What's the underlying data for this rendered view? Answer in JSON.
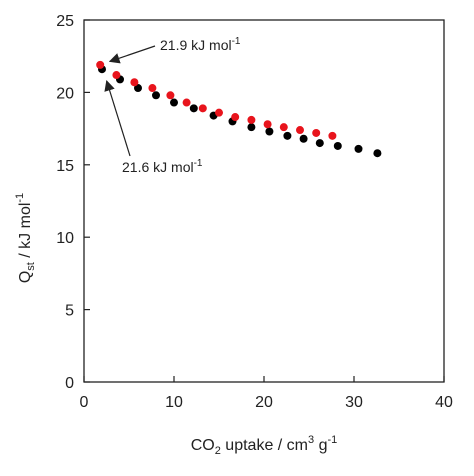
{
  "chart_data": {
    "type": "scatter",
    "xlabel": {
      "pre": "CO",
      "sub": "2",
      "post": " uptake / cm",
      "sup": "3",
      "tail": " g",
      "sup2": "-1"
    },
    "ylabel": {
      "pre": "Q",
      "sub": "st",
      "post": " / kJ mol",
      "sup": "-1"
    },
    "xlim": [
      0,
      40
    ],
    "ylim": [
      0,
      25
    ],
    "xticks": [
      0,
      10,
      20,
      30,
      40
    ],
    "yticks": [
      0,
      5,
      10,
      15,
      20,
      25
    ],
    "grid": false,
    "series": [
      {
        "color": "#000000",
        "points": [
          [
            2.0,
            21.6
          ],
          [
            4.0,
            20.9
          ],
          [
            6.0,
            20.3
          ],
          [
            8.0,
            19.8
          ],
          [
            10.0,
            19.3
          ],
          [
            12.2,
            18.9
          ],
          [
            14.4,
            18.4
          ],
          [
            16.5,
            18.0
          ],
          [
            18.6,
            17.6
          ],
          [
            20.6,
            17.3
          ],
          [
            22.6,
            17.0
          ],
          [
            24.4,
            16.8
          ],
          [
            26.2,
            16.5
          ],
          [
            28.2,
            16.3
          ],
          [
            30.5,
            16.1
          ],
          [
            32.6,
            15.8
          ]
        ]
      },
      {
        "color": "#e8141c",
        "points": [
          [
            1.8,
            21.9
          ],
          [
            3.6,
            21.2
          ],
          [
            5.6,
            20.7
          ],
          [
            7.6,
            20.3
          ],
          [
            9.6,
            19.8
          ],
          [
            11.4,
            19.3
          ],
          [
            13.2,
            18.9
          ],
          [
            15.0,
            18.6
          ],
          [
            16.8,
            18.3
          ],
          [
            18.6,
            18.1
          ],
          [
            20.4,
            17.8
          ],
          [
            22.2,
            17.6
          ],
          [
            24.0,
            17.4
          ],
          [
            25.8,
            17.2
          ],
          [
            27.6,
            17.0
          ]
        ]
      }
    ],
    "annotations": [
      {
        "text": "21.9 kJ mol",
        "sup": "-1",
        "target": [
          2.2,
          22.0
        ]
      },
      {
        "text": "21.6 kJ mol",
        "sup": "-1",
        "target": [
          2.3,
          21.2
        ]
      }
    ]
  }
}
